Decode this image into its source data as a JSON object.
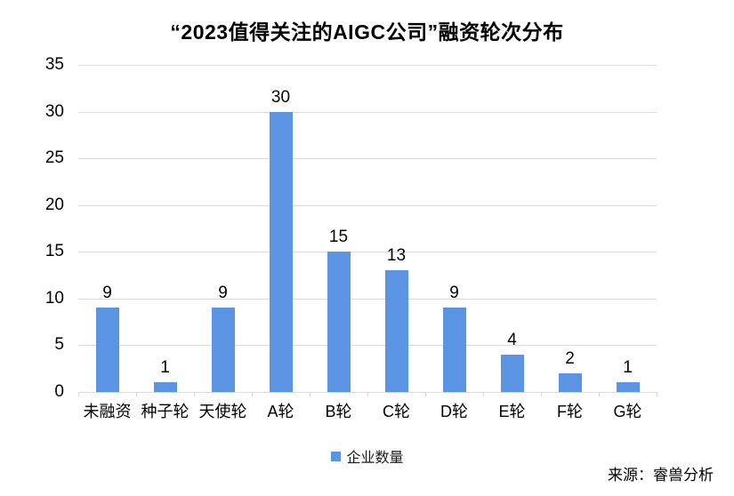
{
  "title": "“2023值得关注的AIGC公司”融资轮次分布",
  "legend": {
    "label": "企业数量"
  },
  "source": "来源：睿兽分析",
  "colors": {
    "bar": "#5C94E4",
    "grid": "#D9D9D9",
    "axis": "#D9D9D9",
    "text": "#000000"
  },
  "chart_data": {
    "type": "bar",
    "title": "“2023值得关注的AIGC公司”融资轮次分布",
    "categories": [
      "未融资",
      "种子轮",
      "天使轮",
      "A轮",
      "B轮",
      "C轮",
      "D轮",
      "E轮",
      "F轮",
      "G轮"
    ],
    "series": [
      {
        "name": "企业数量",
        "values": [
          9,
          1,
          9,
          30,
          15,
          13,
          9,
          4,
          2,
          1
        ]
      }
    ],
    "values": [
      9,
      1,
      9,
      30,
      15,
      13,
      9,
      4,
      2,
      1
    ],
    "xlabel": "",
    "ylabel": "",
    "ylim": [
      0,
      35
    ],
    "ytick_step": 5,
    "yticks": [
      0,
      5,
      10,
      15,
      20,
      25,
      30,
      35
    ],
    "grid": true,
    "data_labels": true,
    "legend_position": "bottom",
    "source": "来源：睿兽分析"
  }
}
